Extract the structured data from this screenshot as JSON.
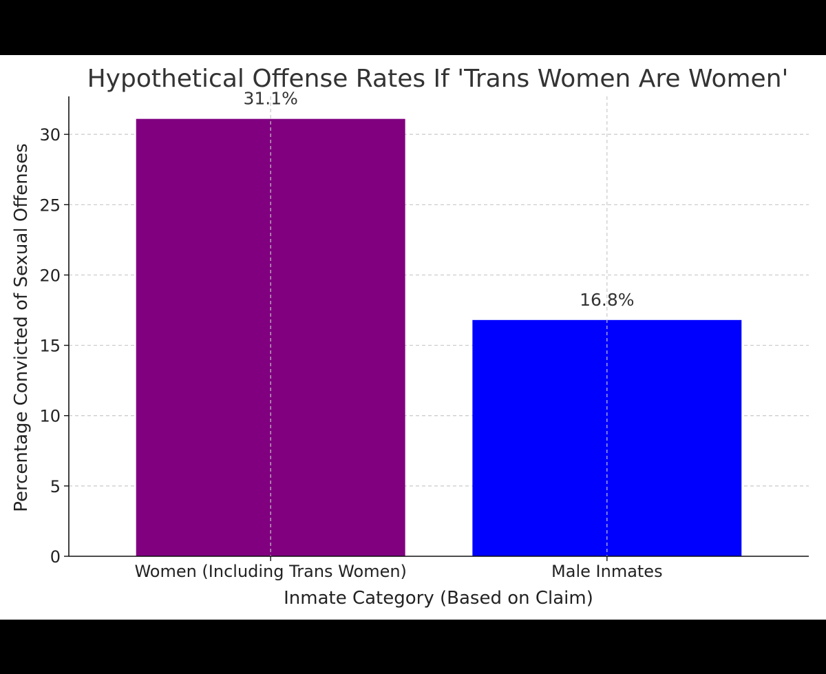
{
  "chart_data": {
    "type": "bar",
    "title": "Hypothetical Offense Rates If 'Trans Women Are Women'",
    "xlabel": "Inmate Category (Based on Claim)",
    "ylabel": "Percentage Convicted of Sexual Offenses",
    "categories": [
      "Women (Including Trans Women)",
      "Male Inmates"
    ],
    "values": [
      31.1,
      16.8
    ],
    "data_labels": [
      "31.1%",
      "16.8%"
    ],
    "colors": [
      "#800080",
      "#0000ff"
    ],
    "ylim": [
      0,
      32.7
    ],
    "yticks": [
      0,
      5,
      10,
      15,
      20,
      25,
      30
    ],
    "grid": true
  },
  "colors": {
    "frame": "#000000",
    "plot_background": "#ffffff",
    "grid": "#c8c8c8",
    "text": "#333333"
  }
}
